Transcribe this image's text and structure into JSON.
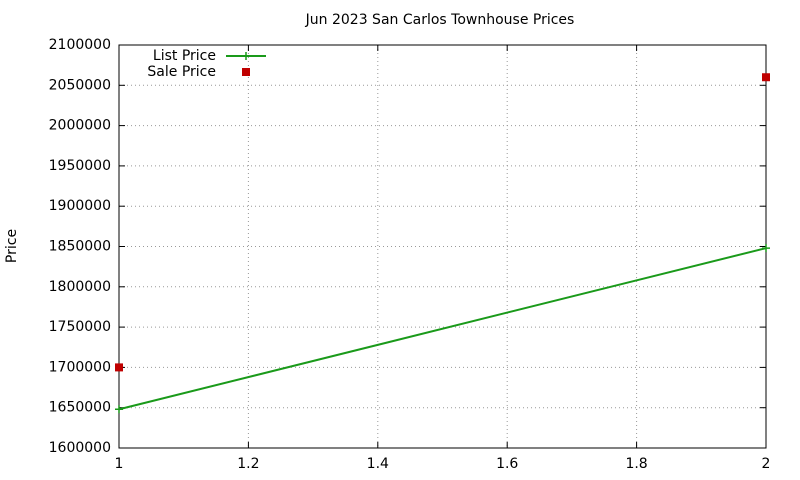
{
  "chart_data": {
    "type": "line",
    "title": "Jun 2023 San Carlos Townhouse Prices",
    "y_label": "Price",
    "series": [
      {
        "name": "List Price",
        "color": "#1a9a1a",
        "mode": "lines+markers",
        "x": [
          1,
          2
        ],
        "values": [
          1648000,
          1848000
        ]
      },
      {
        "name": "Sale Price",
        "color": "#c00000",
        "mode": "markers",
        "x": [
          1,
          2
        ],
        "values": [
          1700000,
          2060000
        ]
      }
    ],
    "xlim": [
      1,
      2
    ],
    "xticks": [
      1,
      1.2,
      1.4,
      1.6,
      1.8,
      2
    ],
    "ylim": [
      1600000,
      2100000
    ],
    "yticks": [
      1600000,
      1650000,
      1700000,
      1750000,
      1800000,
      1850000,
      1900000,
      1950000,
      2000000,
      2050000,
      2100000
    ],
    "grid": true,
    "legend": "top-left"
  }
}
